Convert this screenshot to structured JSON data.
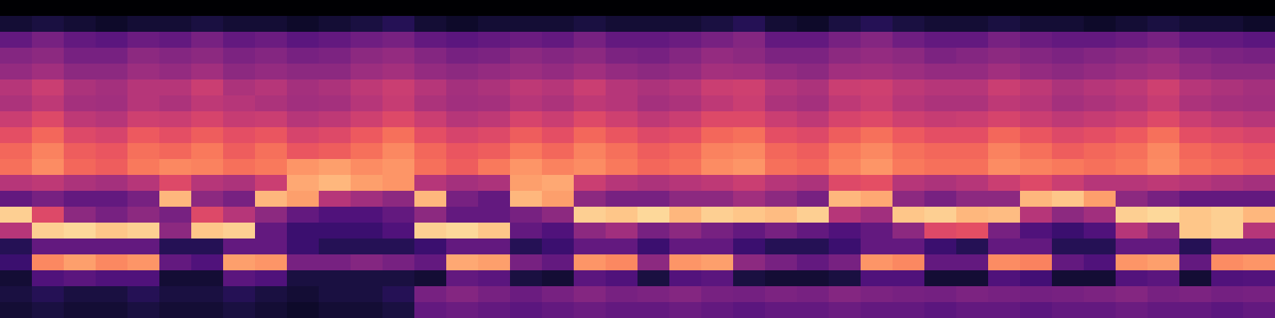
{
  "chart_data": {
    "type": "heatmap",
    "color": "magma",
    "tick_labels": false,
    "color_range": [
      0,
      1
    ],
    "cells": [
      [
        0,
        0,
        0,
        0,
        0,
        0,
        0,
        0,
        0,
        0,
        0,
        0,
        0,
        0,
        0,
        0,
        0,
        0,
        0,
        0,
        0,
        0,
        0,
        0,
        0,
        0,
        0,
        0,
        0,
        0,
        0,
        0,
        0,
        0,
        0,
        0,
        0,
        0,
        0,
        0
      ],
      [
        0.1,
        0.12,
        0.1,
        0.08,
        0.1,
        0.1,
        0.12,
        0.1,
        0.1,
        0.08,
        0.1,
        0.12,
        0.15,
        0.1,
        0.08,
        0.1,
        0.1,
        0.1,
        0.12,
        0.1,
        0.1,
        0.1,
        0.12,
        0.15,
        0.1,
        0.08,
        0.12,
        0.15,
        0.12,
        0.1,
        0.1,
        0.12,
        0.1,
        0.1,
        0.08,
        0.1,
        0.12,
        0.1,
        0.1,
        0.08
      ],
      [
        0.3,
        0.35,
        0.3,
        0.28,
        0.32,
        0.3,
        0.35,
        0.3,
        0.32,
        0.28,
        0.3,
        0.33,
        0.35,
        0.3,
        0.28,
        0.3,
        0.32,
        0.3,
        0.35,
        0.3,
        0.3,
        0.32,
        0.35,
        0.38,
        0.3,
        0.3,
        0.35,
        0.38,
        0.33,
        0.3,
        0.3,
        0.35,
        0.32,
        0.3,
        0.3,
        0.32,
        0.35,
        0.3,
        0.3,
        0.28
      ],
      [
        0.38,
        0.4,
        0.35,
        0.35,
        0.4,
        0.38,
        0.4,
        0.36,
        0.38,
        0.35,
        0.36,
        0.4,
        0.42,
        0.38,
        0.35,
        0.36,
        0.4,
        0.38,
        0.4,
        0.36,
        0.35,
        0.38,
        0.42,
        0.4,
        0.36,
        0.36,
        0.4,
        0.42,
        0.4,
        0.36,
        0.38,
        0.4,
        0.38,
        0.36,
        0.38,
        0.4,
        0.42,
        0.38,
        0.36,
        0.35
      ],
      [
        0.42,
        0.45,
        0.4,
        0.4,
        0.44,
        0.42,
        0.45,
        0.4,
        0.42,
        0.4,
        0.4,
        0.44,
        0.46,
        0.42,
        0.4,
        0.42,
        0.44,
        0.42,
        0.45,
        0.42,
        0.4,
        0.42,
        0.46,
        0.45,
        0.42,
        0.4,
        0.45,
        0.46,
        0.44,
        0.42,
        0.42,
        0.45,
        0.42,
        0.4,
        0.42,
        0.44,
        0.46,
        0.42,
        0.4,
        0.4
      ],
      [
        0.5,
        0.55,
        0.48,
        0.46,
        0.5,
        0.5,
        0.55,
        0.48,
        0.5,
        0.46,
        0.48,
        0.52,
        0.55,
        0.5,
        0.46,
        0.48,
        0.52,
        0.5,
        0.55,
        0.5,
        0.48,
        0.5,
        0.55,
        0.56,
        0.5,
        0.48,
        0.55,
        0.56,
        0.52,
        0.5,
        0.5,
        0.55,
        0.52,
        0.48,
        0.5,
        0.52,
        0.56,
        0.5,
        0.48,
        0.46
      ],
      [
        0.48,
        0.52,
        0.46,
        0.45,
        0.5,
        0.48,
        0.52,
        0.5,
        0.48,
        0.45,
        0.46,
        0.5,
        0.54,
        0.48,
        0.45,
        0.46,
        0.5,
        0.48,
        0.52,
        0.5,
        0.46,
        0.48,
        0.52,
        0.55,
        0.48,
        0.46,
        0.52,
        0.55,
        0.5,
        0.48,
        0.48,
        0.52,
        0.5,
        0.46,
        0.48,
        0.5,
        0.54,
        0.48,
        0.46,
        0.45
      ],
      [
        0.55,
        0.6,
        0.52,
        0.5,
        0.56,
        0.55,
        0.58,
        0.54,
        0.55,
        0.5,
        0.52,
        0.56,
        0.6,
        0.55,
        0.5,
        0.52,
        0.58,
        0.55,
        0.6,
        0.56,
        0.52,
        0.55,
        0.6,
        0.6,
        0.55,
        0.52,
        0.58,
        0.6,
        0.56,
        0.54,
        0.55,
        0.58,
        0.55,
        0.52,
        0.54,
        0.56,
        0.6,
        0.55,
        0.52,
        0.5
      ],
      [
        0.62,
        0.68,
        0.6,
        0.58,
        0.65,
        0.62,
        0.66,
        0.62,
        0.64,
        0.58,
        0.6,
        0.65,
        0.7,
        0.62,
        0.58,
        0.6,
        0.66,
        0.62,
        0.68,
        0.64,
        0.6,
        0.62,
        0.68,
        0.7,
        0.62,
        0.6,
        0.66,
        0.7,
        0.65,
        0.62,
        0.62,
        0.68,
        0.64,
        0.6,
        0.62,
        0.65,
        0.7,
        0.62,
        0.6,
        0.58
      ],
      [
        0.68,
        0.74,
        0.66,
        0.64,
        0.7,
        0.68,
        0.72,
        0.66,
        0.7,
        0.64,
        0.66,
        0.7,
        0.75,
        0.68,
        0.64,
        0.66,
        0.72,
        0.68,
        0.74,
        0.7,
        0.66,
        0.68,
        0.74,
        0.75,
        0.68,
        0.66,
        0.72,
        0.75,
        0.7,
        0.68,
        0.68,
        0.74,
        0.7,
        0.66,
        0.68,
        0.7,
        0.75,
        0.68,
        0.66,
        0.64
      ],
      [
        0.7,
        0.76,
        0.68,
        0.66,
        0.72,
        0.75,
        0.74,
        0.7,
        0.72,
        0.78,
        0.8,
        0.76,
        0.78,
        0.7,
        0.66,
        0.72,
        0.78,
        0.74,
        0.76,
        0.72,
        0.68,
        0.7,
        0.76,
        0.78,
        0.7,
        0.68,
        0.74,
        0.78,
        0.72,
        0.7,
        0.7,
        0.76,
        0.74,
        0.72,
        0.7,
        0.72,
        0.76,
        0.7,
        0.68,
        0.66
      ],
      [
        0.5,
        0.52,
        0.48,
        0.46,
        0.5,
        0.6,
        0.5,
        0.48,
        0.55,
        0.82,
        0.85,
        0.8,
        0.78,
        0.5,
        0.46,
        0.48,
        0.8,
        0.82,
        0.55,
        0.5,
        0.48,
        0.5,
        0.52,
        0.55,
        0.5,
        0.48,
        0.6,
        0.62,
        0.5,
        0.48,
        0.5,
        0.55,
        0.6,
        0.55,
        0.5,
        0.5,
        0.52,
        0.5,
        0.48,
        0.46
      ],
      [
        0.3,
        0.35,
        0.3,
        0.3,
        0.35,
        0.85,
        0.4,
        0.35,
        0.85,
        0.8,
        0.5,
        0.45,
        0.4,
        0.85,
        0.35,
        0.3,
        0.85,
        0.8,
        0.4,
        0.35,
        0.35,
        0.4,
        0.4,
        0.45,
        0.4,
        0.35,
        0.85,
        0.82,
        0.4,
        0.35,
        0.4,
        0.4,
        0.85,
        0.88,
        0.8,
        0.4,
        0.35,
        0.3,
        0.3,
        0.3
      ],
      [
        0.9,
        0.6,
        0.4,
        0.35,
        0.4,
        0.35,
        0.6,
        0.5,
        0.4,
        0.3,
        0.25,
        0.25,
        0.3,
        0.4,
        0.3,
        0.3,
        0.35,
        0.4,
        0.9,
        0.88,
        0.92,
        0.85,
        0.9,
        0.88,
        0.86,
        0.9,
        0.5,
        0.45,
        0.88,
        0.9,
        0.85,
        0.86,
        0.5,
        0.4,
        0.45,
        0.9,
        0.92,
        0.88,
        0.9,
        0.85
      ],
      [
        0.5,
        0.9,
        0.92,
        0.88,
        0.9,
        0.4,
        0.88,
        0.9,
        0.3,
        0.2,
        0.2,
        0.2,
        0.25,
        0.9,
        0.92,
        0.88,
        0.3,
        0.25,
        0.4,
        0.45,
        0.35,
        0.4,
        0.35,
        0.3,
        0.35,
        0.3,
        0.25,
        0.3,
        0.4,
        0.6,
        0.62,
        0.35,
        0.25,
        0.2,
        0.25,
        0.5,
        0.4,
        0.88,
        0.9,
        0.5
      ],
      [
        0.15,
        0.3,
        0.3,
        0.3,
        0.3,
        0.15,
        0.15,
        0.3,
        0.3,
        0.2,
        0.15,
        0.15,
        0.15,
        0.2,
        0.3,
        0.3,
        0.15,
        0.2,
        0.3,
        0.3,
        0.2,
        0.3,
        0.3,
        0.2,
        0.15,
        0.15,
        0.2,
        0.3,
        0.3,
        0.2,
        0.15,
        0.3,
        0.3,
        0.15,
        0.15,
        0.3,
        0.3,
        0.15,
        0.3,
        0.3
      ],
      [
        0.2,
        0.75,
        0.8,
        0.75,
        0.78,
        0.3,
        0.25,
        0.8,
        0.78,
        0.35,
        0.35,
        0.38,
        0.35,
        0.3,
        0.82,
        0.8,
        0.35,
        0.3,
        0.78,
        0.75,
        0.4,
        0.78,
        0.8,
        0.4,
        0.35,
        0.3,
        0.35,
        0.78,
        0.75,
        0.3,
        0.3,
        0.76,
        0.74,
        0.3,
        0.25,
        0.78,
        0.8,
        0.3,
        0.76,
        0.78
      ],
      [
        0.1,
        0.25,
        0.28,
        0.25,
        0.25,
        0.1,
        0.1,
        0.28,
        0.25,
        0.12,
        0.12,
        0.12,
        0.12,
        0.1,
        0.3,
        0.28,
        0.12,
        0.1,
        0.28,
        0.25,
        0.12,
        0.26,
        0.28,
        0.12,
        0.1,
        0.1,
        0.12,
        0.25,
        0.25,
        0.1,
        0.1,
        0.25,
        0.22,
        0.1,
        0.1,
        0.26,
        0.28,
        0.1,
        0.25,
        0.26
      ],
      [
        0.12,
        0.15,
        0.12,
        0.12,
        0.15,
        0.12,
        0.12,
        0.15,
        0.12,
        0.1,
        0.12,
        0.12,
        0.15,
        0.35,
        0.38,
        0.35,
        0.32,
        0.35,
        0.38,
        0.35,
        0.36,
        0.38,
        0.35,
        0.34,
        0.36,
        0.35,
        0.38,
        0.36,
        0.35,
        0.34,
        0.36,
        0.35,
        0.34,
        0.35,
        0.36,
        0.38,
        0.35,
        0.36,
        0.34,
        0.35
      ],
      [
        0.1,
        0.12,
        0.1,
        0.1,
        0.12,
        0.1,
        0.1,
        0.12,
        0.1,
        0.08,
        0.1,
        0.1,
        0.12,
        0.3,
        0.32,
        0.3,
        0.28,
        0.3,
        0.32,
        0.3,
        0.3,
        0.32,
        0.3,
        0.28,
        0.3,
        0.3,
        0.32,
        0.3,
        0.3,
        0.28,
        0.3,
        0.3,
        0.28,
        0.3,
        0.3,
        0.32,
        0.3,
        0.3,
        0.28,
        0.3
      ]
    ]
  }
}
